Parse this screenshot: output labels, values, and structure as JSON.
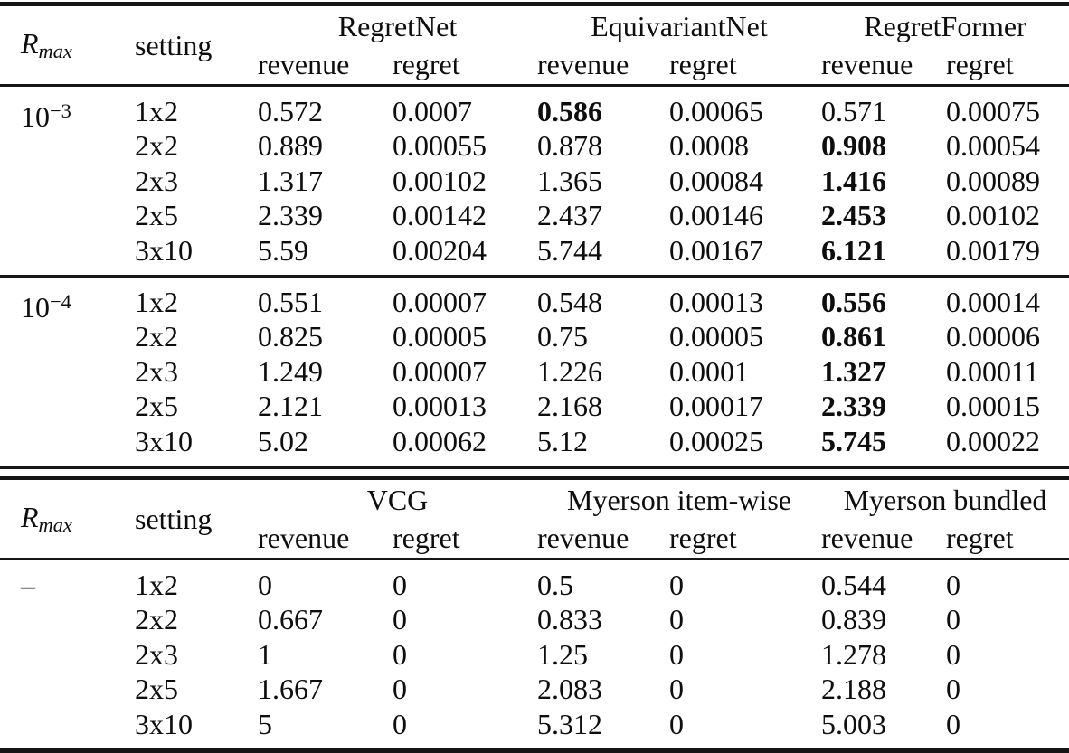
{
  "theme": {
    "background": "#ffffff",
    "text_color": "#0e0e0e",
    "rule_color": "#161616"
  },
  "labels": {
    "rmax_base": "R",
    "rmax_sub": "max",
    "setting": "setting",
    "revenue": "revenue",
    "regret": "regret"
  },
  "tables": [
    {
      "groups": [
        "RegretNet",
        "EquivariantNet",
        "RegretFormer"
      ],
      "blocks": [
        {
          "rmax_base": "10",
          "rmax_sup": "−3",
          "rows": [
            {
              "setting": "1x2",
              "values": [
                "0.572",
                "0.0007",
                "0.586",
                "0.00065",
                "0.571",
                "0.00075"
              ],
              "bold": [
                false,
                false,
                true,
                false,
                false,
                false
              ]
            },
            {
              "setting": "2x2",
              "values": [
                "0.889",
                "0.00055",
                "0.878",
                "0.0008",
                "0.908",
                "0.00054"
              ],
              "bold": [
                false,
                false,
                false,
                false,
                true,
                false
              ]
            },
            {
              "setting": "2x3",
              "values": [
                "1.317",
                "0.00102",
                "1.365",
                "0.00084",
                "1.416",
                "0.00089"
              ],
              "bold": [
                false,
                false,
                false,
                false,
                true,
                false
              ]
            },
            {
              "setting": "2x5",
              "values": [
                "2.339",
                "0.00142",
                "2.437",
                "0.00146",
                "2.453",
                "0.00102"
              ],
              "bold": [
                false,
                false,
                false,
                false,
                true,
                false
              ]
            },
            {
              "setting": "3x10",
              "values": [
                "5.59",
                "0.00204",
                "5.744",
                "0.00167",
                "6.121",
                "0.00179"
              ],
              "bold": [
                false,
                false,
                false,
                false,
                true,
                false
              ]
            }
          ]
        },
        {
          "rmax_base": "10",
          "rmax_sup": "−4",
          "rows": [
            {
              "setting": "1x2",
              "values": [
                "0.551",
                "0.00007",
                "0.548",
                "0.00013",
                "0.556",
                "0.00014"
              ],
              "bold": [
                false,
                false,
                false,
                false,
                true,
                false
              ]
            },
            {
              "setting": "2x2",
              "values": [
                "0.825",
                "0.00005",
                "0.75",
                "0.00005",
                "0.861",
                "0.00006"
              ],
              "bold": [
                false,
                false,
                false,
                false,
                true,
                false
              ]
            },
            {
              "setting": "2x3",
              "values": [
                "1.249",
                "0.00007",
                "1.226",
                "0.0001",
                "1.327",
                "0.00011"
              ],
              "bold": [
                false,
                false,
                false,
                false,
                true,
                false
              ]
            },
            {
              "setting": "2x5",
              "values": [
                "2.121",
                "0.00013",
                "2.168",
                "0.00017",
                "2.339",
                "0.00015"
              ],
              "bold": [
                false,
                false,
                false,
                false,
                true,
                false
              ]
            },
            {
              "setting": "3x10",
              "values": [
                "5.02",
                "0.00062",
                "5.12",
                "0.00025",
                "5.745",
                "0.00022"
              ],
              "bold": [
                false,
                false,
                false,
                false,
                true,
                false
              ]
            }
          ]
        }
      ]
    },
    {
      "groups": [
        "VCG",
        "Myerson item-wise",
        "Myerson bundled"
      ],
      "blocks": [
        {
          "rmax_base": "–",
          "rmax_sup": "",
          "rows": [
            {
              "setting": "1x2",
              "values": [
                "0",
                "0",
                "0.5",
                "0",
                "0.544",
                "0"
              ],
              "bold": [
                false,
                false,
                false,
                false,
                false,
                false
              ]
            },
            {
              "setting": "2x2",
              "values": [
                "0.667",
                "0",
                "0.833",
                "0",
                "0.839",
                "0"
              ],
              "bold": [
                false,
                false,
                false,
                false,
                false,
                false
              ]
            },
            {
              "setting": "2x3",
              "values": [
                "1",
                "0",
                "1.25",
                "0",
                "1.278",
                "0"
              ],
              "bold": [
                false,
                false,
                false,
                false,
                false,
                false
              ]
            },
            {
              "setting": "2x5",
              "values": [
                "1.667",
                "0",
                "2.083",
                "0",
                "2.188",
                "0"
              ],
              "bold": [
                false,
                false,
                false,
                false,
                false,
                false
              ]
            },
            {
              "setting": "3x10",
              "values": [
                "5",
                "0",
                "5.312",
                "0",
                "5.003",
                "0"
              ],
              "bold": [
                false,
                false,
                false,
                false,
                false,
                false
              ]
            }
          ]
        }
      ]
    }
  ]
}
